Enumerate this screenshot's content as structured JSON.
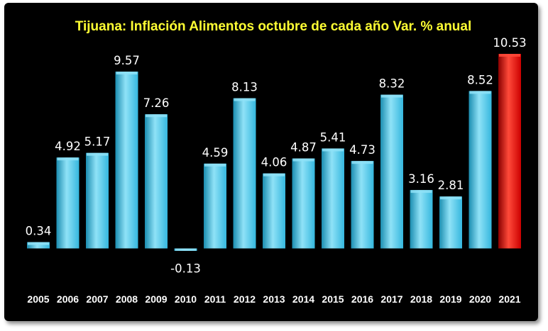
{
  "chart_data": {
    "type": "bar",
    "title": "Tijuana: Inflación Alimentos octubre de cada año Var. % anual",
    "xlabel": "",
    "ylabel": "",
    "categories": [
      "2005",
      "2006",
      "2007",
      "2008",
      "2009",
      "2010",
      "2011",
      "2012",
      "2013",
      "2014",
      "2015",
      "2016",
      "2017",
      "2018",
      "2019",
      "2020",
      "2021"
    ],
    "values": [
      0.34,
      4.92,
      5.17,
      9.57,
      7.26,
      -0.13,
      4.59,
      8.13,
      4.06,
      4.87,
      5.41,
      4.73,
      8.32,
      3.16,
      2.81,
      8.52,
      10.53
    ],
    "value_labels": [
      "0.34",
      "4.92",
      "5.17",
      "9.57",
      "7.26",
      "-0.13",
      "4.59",
      "8.13",
      "4.06",
      "4.87",
      "5.41",
      "4.73",
      "8.32",
      "3.16",
      "2.81",
      "8.52",
      "10.53"
    ],
    "ylim": [
      -0.13,
      10.53
    ],
    "grid": false,
    "legend": "none",
    "highlight_index": 16,
    "colors": {
      "background": "#000000",
      "bar": "#35b7de",
      "bar_light": "#8fe2f7",
      "bar_dark": "#1b8db0",
      "highlight": "#cc0000",
      "highlight_light": "#ff4a3a",
      "highlight_dark": "#8a0000",
      "title": "#ffff33",
      "text": "#ffffff"
    }
  }
}
